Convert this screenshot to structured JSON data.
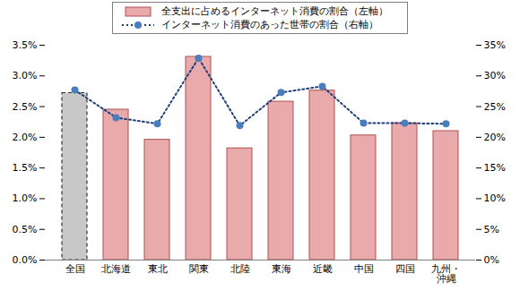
{
  "chart_data": {
    "type": "bar",
    "categories": [
      "全国",
      "北海道",
      "東北",
      "関東",
      "北陸",
      "東海",
      "近畿",
      "中国",
      "四国",
      "九州・\n沖縄"
    ],
    "series": [
      {
        "name": "全支出に占めるインターネット消費の割合（左軸）",
        "type": "bar",
        "colors": [
          "#c8c8c8",
          "#e8aaaa",
          "#e8aaaa",
          "#e8aaaa",
          "#e8aaaa",
          "#e8aaaa",
          "#e8aaaa",
          "#e8aaaa",
          "#e8aaaa",
          "#e8aaaa"
        ],
        "values": [
          2.72,
          2.45,
          1.96,
          3.31,
          1.82,
          2.58,
          2.76,
          2.03,
          2.23,
          2.1
        ]
      },
      {
        "name": "インターネット消費のあった世帯の割合（右軸）",
        "type": "line",
        "axis": "y2",
        "color": "#1f3f7a",
        "marker": "circle",
        "line_style": "dotted",
        "values": [
          27.7,
          23.2,
          22.2,
          32.9,
          21.9,
          27.3,
          28.3,
          22.3,
          22.3,
          22.2
        ]
      }
    ],
    "ylim": [
      0,
      3.5
    ],
    "yticks": [
      {
        "value": 0,
        "label": "0.0%"
      },
      {
        "value": 0.5,
        "label": "0.5%"
      },
      {
        "value": 1,
        "label": "1.0%"
      },
      {
        "value": 1.5,
        "label": "1.5%"
      },
      {
        "value": 2,
        "label": "2.0%"
      },
      {
        "value": 2.5,
        "label": "2.5%"
      },
      {
        "value": 3,
        "label": "3.0%"
      },
      {
        "value": 3.5,
        "label": "3.5%"
      }
    ],
    "y2lim": [
      0,
      35
    ],
    "y2ticks": [
      {
        "value": 0,
        "label": "0%"
      },
      {
        "value": 5,
        "label": "5%"
      },
      {
        "value": 10,
        "label": "10%"
      },
      {
        "value": 15,
        "label": "15%"
      },
      {
        "value": 20,
        "label": "20%"
      },
      {
        "value": 25,
        "label": "25%"
      },
      {
        "value": 30,
        "label": "30%"
      },
      {
        "value": 35,
        "label": "35%"
      }
    ],
    "grid": false,
    "legend": "top",
    "data_labels": false
  }
}
